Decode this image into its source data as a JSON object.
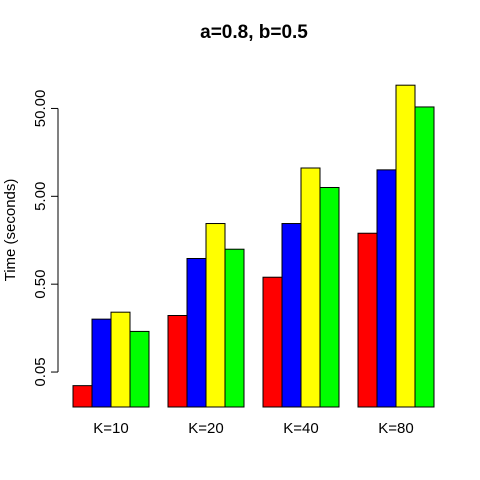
{
  "chart_data": {
    "type": "bar",
    "title": "a=0.8, b=0.5",
    "xlabel": "",
    "ylabel": "Time (seconds)",
    "y_scale": "log",
    "ylim": [
      0.02,
      100
    ],
    "y_ticks": [
      0.05,
      0.5,
      5,
      50
    ],
    "y_tick_labels": [
      "0.05",
      "0.50",
      "5.00",
      "50.00"
    ],
    "categories": [
      "K=10",
      "K=20",
      "K=40",
      "K=80"
    ],
    "series": [
      {
        "color": "#ff0000",
        "values": [
          0.035,
          0.22,
          0.6,
          1.9
        ]
      },
      {
        "color": "#0000ff",
        "values": [
          0.2,
          0.98,
          2.45,
          10
        ]
      },
      {
        "color": "#ffff00",
        "values": [
          0.24,
          2.45,
          10.5,
          92
        ]
      },
      {
        "color": "#00ff00",
        "values": [
          0.145,
          1.25,
          6.3,
          52
        ]
      }
    ],
    "grid": false,
    "legend": "none"
  }
}
